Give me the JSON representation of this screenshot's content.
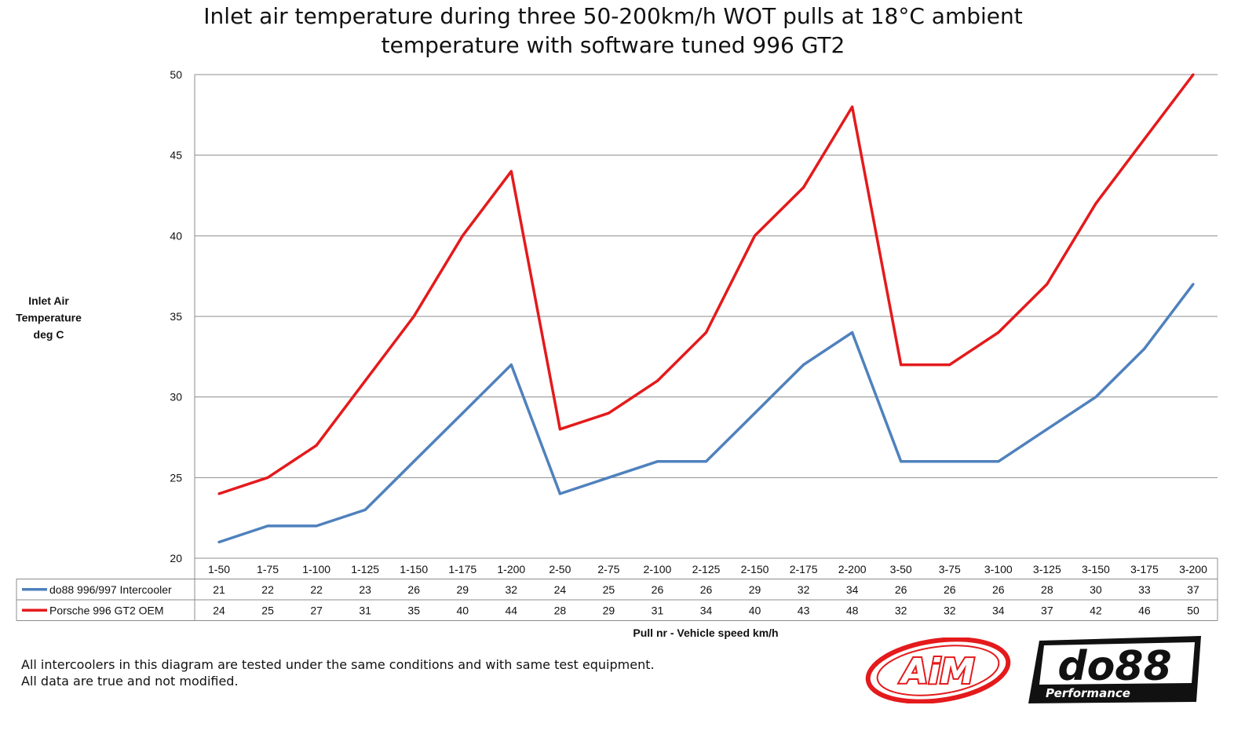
{
  "chart_data": {
    "type": "line",
    "title": [
      "Inlet air temperature during three 50-200km/h WOT pulls at 18°C ambient",
      "temperature with software tuned 996 GT2"
    ],
    "ylabel": [
      "Inlet Air",
      "Temperature",
      "deg C"
    ],
    "xlabel": "Pull nr - Vehicle speed km/h",
    "ylim": [
      20,
      50
    ],
    "yticks": [
      20,
      25,
      30,
      35,
      40,
      45,
      50
    ],
    "grid": true,
    "legend": "data-table-below",
    "categories": [
      "1-50",
      "1-75",
      "1-100",
      "1-125",
      "1-150",
      "1-175",
      "1-200",
      "2-50",
      "2-75",
      "2-100",
      "2-125",
      "2-150",
      "2-175",
      "2-200",
      "3-50",
      "3-75",
      "3-100",
      "3-125",
      "3-150",
      "3-175",
      "3-200"
    ],
    "series": [
      {
        "name": "do88 996/997 Intercooler",
        "color": "#4F81BD",
        "values": [
          21,
          22,
          22,
          23,
          26,
          29,
          32,
          24,
          25,
          26,
          26,
          29,
          32,
          34,
          26,
          26,
          26,
          28,
          30,
          33,
          37
        ]
      },
      {
        "name": "Porsche 996 GT2 OEM",
        "color": "#E41A1C",
        "values": [
          24,
          25,
          27,
          31,
          35,
          40,
          44,
          28,
          29,
          31,
          34,
          40,
          43,
          48,
          32,
          32,
          34,
          37,
          42,
          46,
          50
        ]
      }
    ]
  },
  "footnote": {
    "line1": "All intercoolers in this diagram are tested under the same conditions and with same test equipment.",
    "line2": "All data are true and not modified."
  },
  "logos": {
    "aim": "AiM",
    "do88_main": "do88",
    "do88_sub": "Performance"
  }
}
